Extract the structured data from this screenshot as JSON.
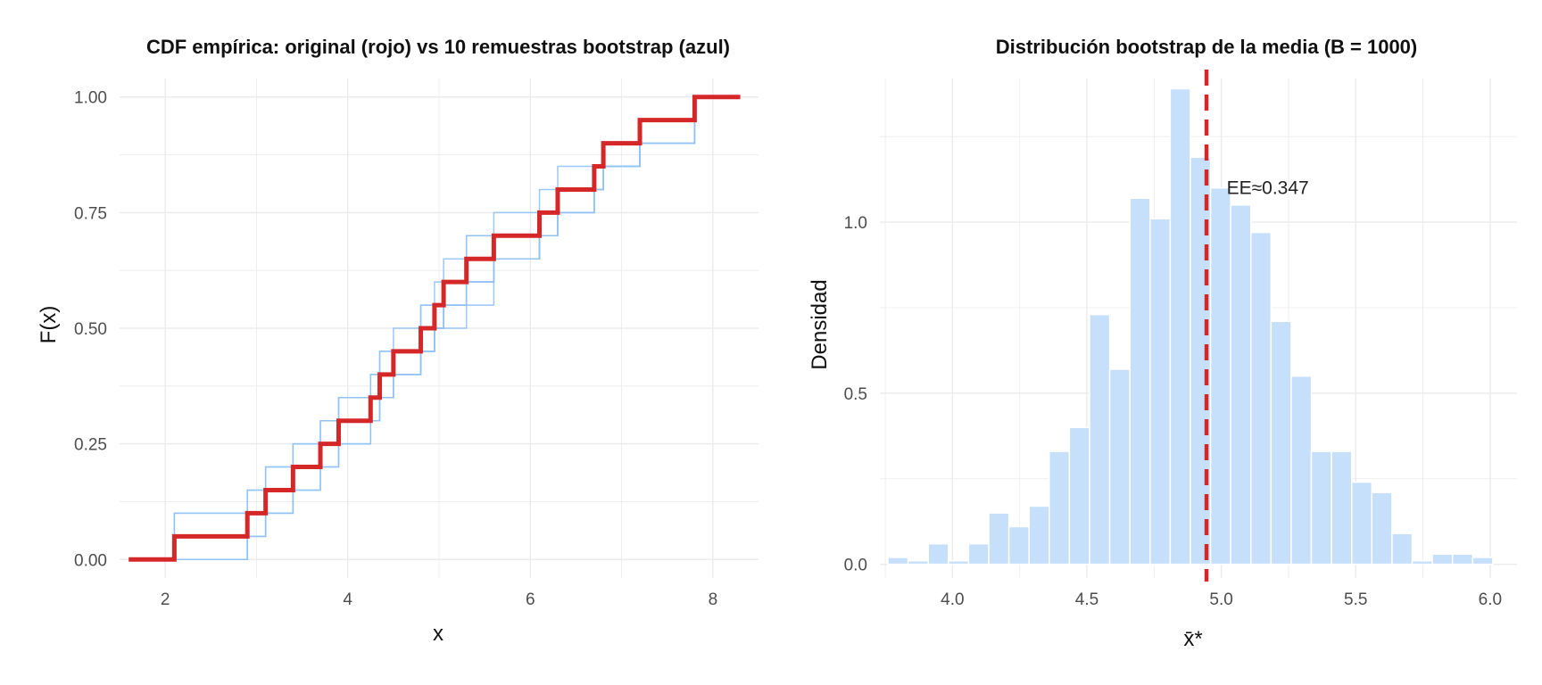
{
  "colors": {
    "original": "#d62728",
    "bootstrap_lines": "#90c2f5",
    "hist_fill": "#c6dffa",
    "mean_line": "#d62728",
    "grid": "#ebebeb"
  },
  "chart_data": [
    {
      "type": "line",
      "step": true,
      "title": "CDF empírica: original (rojo) vs 10 remuestras bootstrap (azul)",
      "xlabel": "x",
      "ylabel": "F(x)",
      "xlim": [
        1.5,
        8.5
      ],
      "ylim": [
        -0.04,
        1.04
      ],
      "x_ticks": [
        2,
        4,
        6,
        8
      ],
      "y_ticks": [
        0,
        0.25,
        0.5,
        0.75,
        1
      ],
      "x_tick_labels": [
        "2",
        "4",
        "6",
        "8"
      ],
      "y_tick_labels": [
        "0.00",
        "0.25",
        "0.50",
        "0.75",
        "1.00"
      ],
      "grid": true,
      "original": {
        "color_name": "rojo",
        "x": [
          2.1,
          2.9,
          3.1,
          3.4,
          3.7,
          3.9,
          4.25,
          4.35,
          4.5,
          4.8,
          4.95,
          5.05,
          5.3,
          5.6,
          6.1,
          6.3,
          6.7,
          6.8,
          7.2,
          7.8
        ],
        "xmin": 1.6,
        "xmax": 8.3
      },
      "bootstrap_samples": [
        [
          2.1,
          2.1,
          3.1,
          3.1,
          3.4,
          3.7,
          3.9,
          4.35,
          4.35,
          4.5,
          4.8,
          5.05,
          5.05,
          5.3,
          5.6,
          6.3,
          6.3,
          6.8,
          7.2,
          7.8
        ],
        [
          2.9,
          2.9,
          3.4,
          3.4,
          3.7,
          3.9,
          3.9,
          4.25,
          4.5,
          4.8,
          4.95,
          4.95,
          5.3,
          5.6,
          6.1,
          6.1,
          6.7,
          6.8,
          7.8,
          7.8
        ],
        [
          2.1,
          2.9,
          2.9,
          3.1,
          3.7,
          3.7,
          4.25,
          4.25,
          4.35,
          4.8,
          4.8,
          5.05,
          5.3,
          5.3,
          6.1,
          6.3,
          6.7,
          7.2,
          7.2,
          7.8
        ],
        [
          2.9,
          3.1,
          3.1,
          3.4,
          3.4,
          3.9,
          4.35,
          4.5,
          4.5,
          4.95,
          5.05,
          5.6,
          5.6,
          6.1,
          6.3,
          6.7,
          6.8,
          6.8,
          7.2,
          7.8
        ],
        [
          2.1,
          2.9,
          3.4,
          3.7,
          3.9,
          3.9,
          4.25,
          4.5,
          4.8,
          4.95,
          5.3,
          5.3,
          5.6,
          6.1,
          6.3,
          6.3,
          6.7,
          7.2,
          7.8,
          7.8
        ],
        [
          2.9,
          2.9,
          3.1,
          3.4,
          3.7,
          4.25,
          4.25,
          4.35,
          4.8,
          4.95,
          4.95,
          5.05,
          5.6,
          6.1,
          6.1,
          6.7,
          6.8,
          6.8,
          7.2,
          7.8
        ],
        [
          2.1,
          2.1,
          2.9,
          3.4,
          3.7,
          3.9,
          4.35,
          4.5,
          4.5,
          4.8,
          5.05,
          5.3,
          5.6,
          5.6,
          6.1,
          6.3,
          6.7,
          7.2,
          7.8,
          7.8
        ],
        [
          2.9,
          3.1,
          3.4,
          3.4,
          3.7,
          3.9,
          4.25,
          4.35,
          4.8,
          4.95,
          5.05,
          5.3,
          5.3,
          6.1,
          6.3,
          6.7,
          6.7,
          6.8,
          7.2,
          7.8
        ],
        [
          2.1,
          2.9,
          3.1,
          3.7,
          3.7,
          3.9,
          4.25,
          4.5,
          4.8,
          4.8,
          4.95,
          5.3,
          5.6,
          6.1,
          6.3,
          6.3,
          6.8,
          7.2,
          7.2,
          7.8
        ],
        [
          2.9,
          3.1,
          3.1,
          3.4,
          3.9,
          4.25,
          4.35,
          4.35,
          4.5,
          4.95,
          5.05,
          5.05,
          5.6,
          5.6,
          6.1,
          6.7,
          6.8,
          7.2,
          7.8,
          7.8
        ]
      ]
    },
    {
      "type": "bar",
      "histogram": true,
      "title": "Distribución bootstrap de la media (B = 1000)",
      "xlabel": "x̄*",
      "ylabel": "Densidad",
      "xlim": [
        3.73,
        6.1
      ],
      "ylim": [
        -0.04,
        1.42
      ],
      "x_ticks": [
        4.0,
        4.5,
        5.0,
        5.5,
        6.0
      ],
      "y_ticks": [
        0,
        0.5,
        1.0
      ],
      "x_tick_labels": [
        "4.0",
        "4.5",
        "5.0",
        "5.5",
        "6.0"
      ],
      "y_tick_labels": [
        "0.0",
        "0.5",
        "1.0"
      ],
      "grid": true,
      "bin_start": 3.76,
      "bin_width": 0.075,
      "values": [
        0.02,
        0.01,
        0.06,
        0.01,
        0.06,
        0.15,
        0.11,
        0.17,
        0.33,
        0.4,
        0.73,
        0.57,
        1.07,
        1.01,
        1.39,
        1.19,
        1.1,
        1.05,
        0.97,
        0.71,
        0.55,
        0.33,
        0.33,
        0.24,
        0.21,
        0.09,
        0.01,
        0.03,
        0.03,
        0.02
      ],
      "mean_line": 4.945,
      "annotation": {
        "text": "EE≈0.347",
        "x": 5.02,
        "y": 1.1
      }
    }
  ]
}
